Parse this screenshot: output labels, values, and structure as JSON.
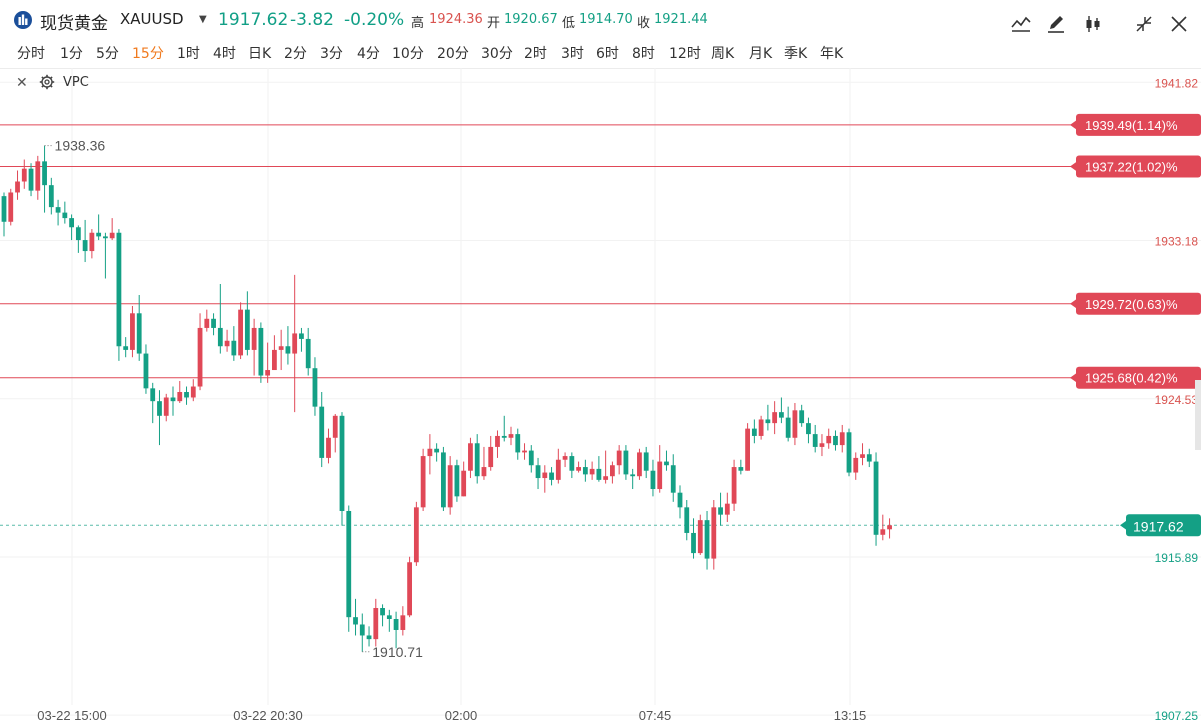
{
  "symbol": {
    "name": "现货黄金",
    "code": "XAUUSD"
  },
  "quote": {
    "last": "1917.62",
    "change": "-3.82",
    "change_pct": "-0.20%"
  },
  "ohlc": {
    "high_label": "高",
    "high": "1924.36",
    "open_label": "开",
    "open": "1920.67",
    "low_label": "低",
    "low": "1914.70",
    "close_label": "收",
    "close": "1921.44"
  },
  "timeframes": [
    "分时",
    "1分",
    "5分",
    "15分",
    "1时",
    "4时",
    "日K",
    "2分",
    "3分",
    "4分",
    "10分",
    "20分",
    "30分",
    "2时",
    "3时",
    "6时",
    "8时",
    "12时",
    "周K",
    "月K",
    "季K",
    "年K"
  ],
  "active_timeframe": "15分",
  "indicator": {
    "name": "VPC"
  },
  "toolbar_icons": [
    "line-tool-icon",
    "edit-icon",
    "candle-type-icon",
    "collapse-icon",
    "close-icon"
  ],
  "colors": {
    "up": "#e04857",
    "down": "#14a085",
    "level_line": "#e04857",
    "accent": "#f07a1e"
  },
  "chart_data": {
    "type": "candlestick",
    "ylim": [
      1906.6,
      1942.6
    ],
    "y_ticks": [
      {
        "value": 1941.82,
        "label": "1941.82",
        "color": "#d9534f"
      },
      {
        "value": 1933.18,
        "label": "1933.18",
        "color": "#d9534f"
      },
      {
        "value": 1924.53,
        "label": "1924.53",
        "color": "#d9534f"
      },
      {
        "value": 1915.89,
        "label": "1915.89",
        "color": "#14a085"
      },
      {
        "value": 1907.25,
        "label": "1907.25",
        "color": "#14a085"
      }
    ],
    "x_ticks": [
      "03-22 15:00",
      "03-22 20:30",
      "02:00",
      "07:45",
      "13:15"
    ],
    "level_lines": [
      {
        "value": 1939.49,
        "label": "1939.49(1.14)%"
      },
      {
        "value": 1937.22,
        "label": "1937.22(1.02)%"
      },
      {
        "value": 1929.72,
        "label": "1929.72(0.63)%"
      },
      {
        "value": 1925.68,
        "label": "1925.68(0.42)%"
      }
    ],
    "last_price": {
      "value": 1917.62,
      "label": "1917.62"
    },
    "annotations": [
      {
        "label": "1938.36",
        "value": 1938.36,
        "bar": 6
      },
      {
        "label": "1910.71",
        "value": 1910.71,
        "bar": 53
      }
    ],
    "candles": [
      [
        1935.6,
        1934.2,
        1935.8,
        1933.4
      ],
      [
        1934.2,
        1935.8,
        1936.0,
        1934.0
      ],
      [
        1935.8,
        1936.4,
        1937.0,
        1935.4
      ],
      [
        1936.4,
        1937.1,
        1937.6,
        1936.0
      ],
      [
        1937.1,
        1935.9,
        1937.4,
        1935.6
      ],
      [
        1935.9,
        1937.5,
        1937.8,
        1935.4
      ],
      [
        1937.5,
        1936.2,
        1938.36,
        1934.7
      ],
      [
        1936.2,
        1935.0,
        1936.6,
        1934.6
      ],
      [
        1935.0,
        1934.7,
        1935.4,
        1934.0
      ],
      [
        1934.7,
        1934.4,
        1935.3,
        1934.1
      ],
      [
        1934.4,
        1933.9,
        1934.6,
        1933.2
      ],
      [
        1933.9,
        1933.2,
        1934.0,
        1932.5
      ],
      [
        1933.2,
        1932.6,
        1934.3,
        1932.0
      ],
      [
        1932.6,
        1933.6,
        1933.8,
        1932.2
      ],
      [
        1933.6,
        1933.4,
        1934.6,
        1933.2
      ],
      [
        1933.4,
        1933.3,
        1933.6,
        1931.1
      ],
      [
        1933.3,
        1933.6,
        1934.4,
        1933.2
      ],
      [
        1933.6,
        1927.4,
        1933.8,
        1926.6
      ],
      [
        1927.4,
        1927.2,
        1927.9,
        1926.8
      ],
      [
        1927.2,
        1929.2,
        1929.6,
        1926.8
      ],
      [
        1929.2,
        1927.0,
        1930.2,
        1926.6
      ],
      [
        1927.0,
        1925.1,
        1927.5,
        1924.8
      ],
      [
        1925.1,
        1924.4,
        1925.4,
        1923.2
      ],
      [
        1924.4,
        1923.6,
        1925.0,
        1922.0
      ],
      [
        1923.6,
        1924.6,
        1924.8,
        1923.3
      ],
      [
        1924.6,
        1924.4,
        1925.2,
        1923.6
      ],
      [
        1924.4,
        1924.9,
        1925.5,
        1924.3
      ],
      [
        1924.9,
        1924.6,
        1925.2,
        1924.2
      ],
      [
        1924.6,
        1925.2,
        1925.6,
        1924.4
      ],
      [
        1925.2,
        1928.4,
        1929.2,
        1925.0
      ],
      [
        1928.4,
        1928.9,
        1929.4,
        1928.2
      ],
      [
        1928.9,
        1928.4,
        1929.2,
        1928.0
      ],
      [
        1928.4,
        1927.4,
        1930.8,
        1927.0
      ],
      [
        1927.4,
        1927.7,
        1928.3,
        1927.1
      ],
      [
        1927.7,
        1926.9,
        1928.5,
        1926.6
      ],
      [
        1926.9,
        1929.4,
        1929.8,
        1926.7
      ],
      [
        1929.4,
        1927.2,
        1930.4,
        1926.9
      ],
      [
        1927.2,
        1928.4,
        1928.9,
        1925.8
      ],
      [
        1928.4,
        1925.8,
        1928.7,
        1925.4
      ],
      [
        1925.8,
        1926.1,
        1927.6,
        1925.4
      ],
      [
        1926.1,
        1927.2,
        1928.0,
        1926.2
      ],
      [
        1927.2,
        1927.4,
        1928.3,
        1926.1
      ],
      [
        1927.4,
        1927.0,
        1928.5,
        1926.4
      ],
      [
        1927.0,
        1928.1,
        1931.3,
        1923.8
      ],
      [
        1928.1,
        1927.8,
        1928.4,
        1927.1
      ],
      [
        1927.8,
        1926.2,
        1928.4,
        1925.8
      ],
      [
        1926.2,
        1924.1,
        1926.8,
        1923.6
      ],
      [
        1924.1,
        1921.3,
        1924.9,
        1920.8
      ],
      [
        1921.3,
        1922.4,
        1922.9,
        1921.0
      ],
      [
        1922.4,
        1923.6,
        1923.7,
        1921.6
      ],
      [
        1923.6,
        1918.4,
        1923.8,
        1917.6
      ],
      [
        1918.4,
        1912.6,
        1918.7,
        1911.8
      ],
      [
        1912.6,
        1912.2,
        1913.6,
        1911.6
      ],
      [
        1912.2,
        1911.6,
        1912.8,
        1910.71
      ],
      [
        1911.6,
        1911.4,
        1912.1,
        1911.0
      ],
      [
        1911.4,
        1913.1,
        1913.6,
        1911.0
      ],
      [
        1913.1,
        1912.7,
        1913.3,
        1912.1
      ],
      [
        1912.7,
        1912.5,
        1913.0,
        1911.8
      ],
      [
        1912.5,
        1911.9,
        1912.9,
        1910.9
      ],
      [
        1911.9,
        1912.7,
        1913.2,
        1911.6
      ],
      [
        1912.7,
        1915.6,
        1915.9,
        1912.6
      ],
      [
        1915.6,
        1918.6,
        1918.9,
        1915.4
      ],
      [
        1918.6,
        1921.4,
        1921.8,
        1918.4
      ],
      [
        1921.4,
        1921.8,
        1922.6,
        1920.4
      ],
      [
        1921.8,
        1921.6,
        1922.1,
        1921.1
      ],
      [
        1921.6,
        1918.6,
        1921.9,
        1918.4
      ],
      [
        1918.6,
        1920.9,
        1921.4,
        1918.2
      ],
      [
        1920.9,
        1919.2,
        1921.2,
        1918.9
      ],
      [
        1919.2,
        1920.6,
        1921.1,
        1919.2
      ],
      [
        1920.6,
        1922.1,
        1922.4,
        1920.2
      ],
      [
        1922.1,
        1920.3,
        1922.6,
        1919.9
      ],
      [
        1920.3,
        1920.8,
        1921.9,
        1920.1
      ],
      [
        1920.8,
        1921.9,
        1922.5,
        1920.6
      ],
      [
        1921.9,
        1922.5,
        1922.8,
        1921.3
      ],
      [
        1922.5,
        1922.4,
        1923.6,
        1922.2
      ],
      [
        1922.4,
        1922.6,
        1923.0,
        1922.0
      ],
      [
        1922.6,
        1921.6,
        1922.9,
        1921.2
      ],
      [
        1921.6,
        1921.7,
        1922.1,
        1921.2
      ],
      [
        1921.7,
        1920.9,
        1922.0,
        1920.5
      ],
      [
        1920.9,
        1920.2,
        1921.3,
        1919.6
      ],
      [
        1920.2,
        1920.5,
        1920.9,
        1919.4
      ],
      [
        1920.5,
        1920.1,
        1920.8,
        1919.8
      ],
      [
        1920.1,
        1921.2,
        1921.8,
        1919.9
      ],
      [
        1921.2,
        1921.4,
        1921.6,
        1920.8
      ],
      [
        1921.4,
        1920.6,
        1921.6,
        1920.2
      ],
      [
        1920.6,
        1920.8,
        1921.1,
        1920.5
      ],
      [
        1920.8,
        1920.4,
        1921.2,
        1920.0
      ],
      [
        1920.4,
        1920.7,
        1921.1,
        1920.1
      ],
      [
        1920.7,
        1920.1,
        1921.4,
        1920.0
      ],
      [
        1920.1,
        1920.3,
        1921.7,
        1919.9
      ],
      [
        1920.3,
        1920.9,
        1921.1,
        1919.9
      ],
      [
        1920.9,
        1921.7,
        1922.0,
        1920.4
      ],
      [
        1921.7,
        1920.4,
        1922.0,
        1920.1
      ],
      [
        1920.4,
        1920.3,
        1920.7,
        1919.6
      ],
      [
        1920.3,
        1921.6,
        1921.8,
        1920.1
      ],
      [
        1921.6,
        1920.6,
        1921.9,
        1920.2
      ],
      [
        1920.6,
        1919.6,
        1921.2,
        1919.2
      ],
      [
        1919.6,
        1921.1,
        1922.0,
        1919.4
      ],
      [
        1921.1,
        1920.9,
        1921.7,
        1920.6
      ],
      [
        1920.9,
        1919.4,
        1921.5,
        1918.9
      ],
      [
        1919.4,
        1918.6,
        1919.8,
        1918.0
      ],
      [
        1918.6,
        1917.2,
        1919.0,
        1916.8
      ],
      [
        1917.2,
        1916.1,
        1918.0,
        1915.8
      ],
      [
        1916.1,
        1917.9,
        1918.2,
        1916.0
      ],
      [
        1917.9,
        1915.8,
        1918.4,
        1915.2
      ],
      [
        1915.8,
        1918.6,
        1919.0,
        1915.2
      ],
      [
        1918.6,
        1918.2,
        1919.4,
        1917.6
      ],
      [
        1918.2,
        1918.8,
        1919.4,
        1917.8
      ],
      [
        1918.8,
        1920.8,
        1921.2,
        1918.4
      ],
      [
        1920.8,
        1920.6,
        1921.2,
        1920.4
      ],
      [
        1920.6,
        1922.9,
        1923.2,
        1920.6
      ],
      [
        1922.9,
        1922.5,
        1923.4,
        1922.1
      ],
      [
        1922.5,
        1923.4,
        1923.6,
        1922.3
      ],
      [
        1923.4,
        1923.2,
        1924.2,
        1922.8
      ],
      [
        1923.2,
        1923.8,
        1924.4,
        1922.6
      ],
      [
        1923.8,
        1923.5,
        1924.6,
        1923.2
      ],
      [
        1923.5,
        1922.4,
        1924.1,
        1922.2
      ],
      [
        1922.4,
        1923.9,
        1924.3,
        1922.0
      ],
      [
        1923.9,
        1923.2,
        1924.2,
        1923.0
      ],
      [
        1923.2,
        1922.6,
        1923.5,
        1922.1
      ],
      [
        1922.6,
        1921.9,
        1923.1,
        1921.6
      ],
      [
        1921.9,
        1922.1,
        1922.6,
        1921.4
      ],
      [
        1922.1,
        1922.5,
        1922.9,
        1921.8
      ],
      [
        1922.5,
        1922.0,
        1922.8,
        1921.7
      ],
      [
        1922.0,
        1922.7,
        1923.1,
        1921.6
      ],
      [
        1922.7,
        1920.5,
        1922.9,
        1920.3
      ],
      [
        1920.5,
        1921.3,
        1921.6,
        1920.1
      ],
      [
        1921.3,
        1921.5,
        1922.1,
        1920.9
      ],
      [
        1921.5,
        1921.1,
        1921.8,
        1920.8
      ],
      [
        1921.1,
        1917.1,
        1921.6,
        1916.5
      ],
      [
        1917.1,
        1917.4,
        1918.2,
        1916.8
      ],
      [
        1917.4,
        1917.62,
        1918.0,
        1916.9
      ]
    ]
  }
}
